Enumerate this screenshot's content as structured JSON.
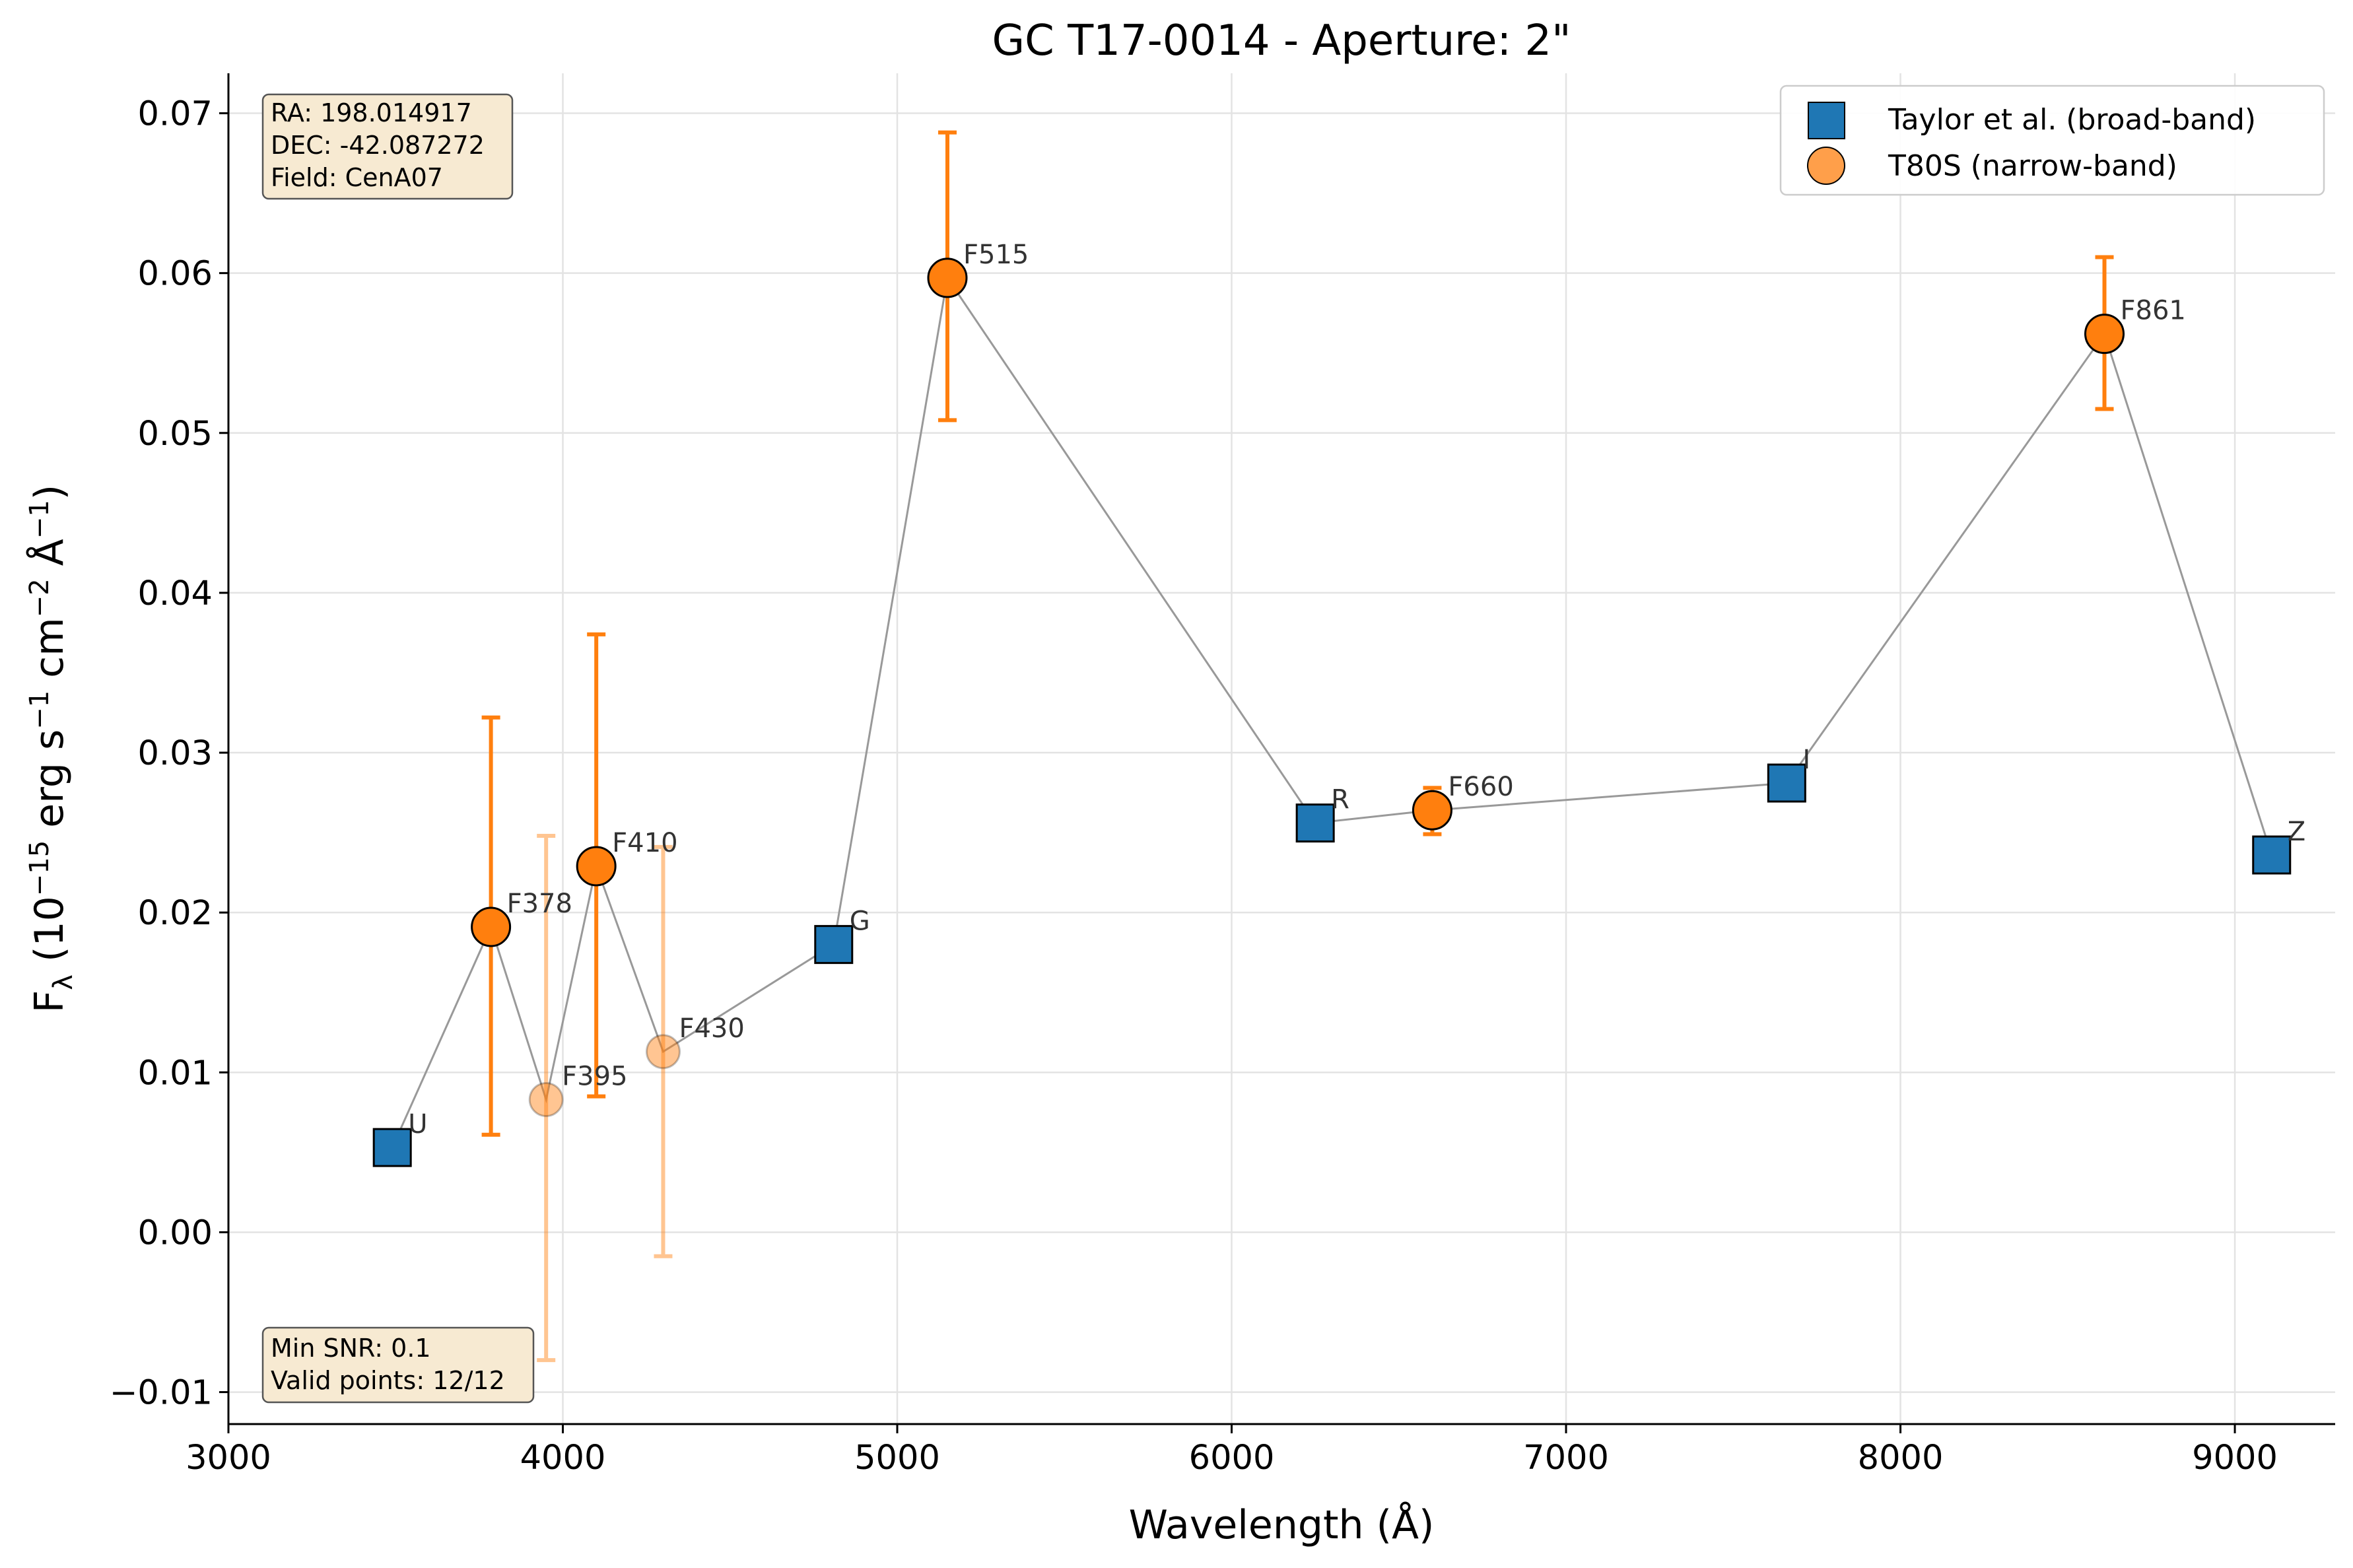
{
  "chart_data": {
    "type": "scatter",
    "title": "GC T17-0014 - Aperture: 2\"",
    "xlabel": "Wavelength (Å)",
    "ylabel": "F_λ (10^−15 erg s^−1 cm^−2 Å^−1)",
    "ylabel_parts": {
      "f": "F",
      "sub": "λ",
      "a": " (10",
      "e1": "−15",
      "b": " erg s",
      "e2": "−1",
      "c": " cm",
      "e3": "−2",
      "d": " Å",
      "e4": "−1",
      "end": ")"
    },
    "xlim": [
      3000,
      9300
    ],
    "ylim": [
      -0.012,
      0.0725
    ],
    "xticks": [
      3000,
      4000,
      5000,
      6000,
      7000,
      8000,
      9000
    ],
    "yticks": [
      -0.01,
      0.0,
      0.01,
      0.02,
      0.03,
      0.04,
      0.05,
      0.06,
      0.07
    ],
    "xtick_labels": [
      "3000",
      "4000",
      "5000",
      "6000",
      "7000",
      "8000",
      "9000"
    ],
    "ytick_labels": [
      "−0.01",
      "0.00",
      "0.01",
      "0.02",
      "0.03",
      "0.04",
      "0.05",
      "0.06",
      "0.07"
    ],
    "grid": true,
    "legend_position": "top-right",
    "series": [
      {
        "name": "Taylor et al. (broad-band)",
        "marker": "square",
        "color": "#1f77b4",
        "points": [
          {
            "label": "U",
            "x": 3490,
            "y": 0.0053
          },
          {
            "label": "G",
            "x": 4810,
            "y": 0.018
          },
          {
            "label": "R",
            "x": 6250,
            "y": 0.0256
          },
          {
            "label": "I",
            "x": 7660,
            "y": 0.0281
          },
          {
            "label": "Z",
            "x": 9110,
            "y": 0.0236
          }
        ]
      },
      {
        "name": "T80S (narrow-band)",
        "marker": "circle",
        "color": "#ff7f0e",
        "points": [
          {
            "label": "F378",
            "x": 3785,
            "y": 0.0191,
            "err_low": 0.0061,
            "err_high": 0.0322,
            "faded": false
          },
          {
            "label": "F395",
            "x": 3950,
            "y": 0.0083,
            "err_low": -0.008,
            "err_high": 0.0248,
            "faded": true
          },
          {
            "label": "F410",
            "x": 4100,
            "y": 0.0229,
            "err_low": 0.0085,
            "err_high": 0.0374,
            "faded": false
          },
          {
            "label": "F430",
            "x": 4300,
            "y": 0.0113,
            "err_low": -0.0015,
            "err_high": 0.0241,
            "faded": true
          },
          {
            "label": "F515",
            "x": 5150,
            "y": 0.0597,
            "err_low": 0.0508,
            "err_high": 0.0688,
            "faded": false
          },
          {
            "label": "F660",
            "x": 6600,
            "y": 0.0264,
            "err_low": 0.0249,
            "err_high": 0.0278,
            "faded": false
          },
          {
            "label": "F861",
            "x": 8610,
            "y": 0.0562,
            "err_low": 0.0515,
            "err_high": 0.061,
            "faded": false
          }
        ]
      }
    ],
    "connecting_line_order": [
      "U",
      "F378",
      "F395",
      "F410",
      "F430",
      "G",
      "F515",
      "R",
      "F660",
      "I",
      "F861",
      "Z"
    ],
    "info_box_top": [
      "RA: 198.014917",
      "DEC: -42.087272",
      "Field: CenA07"
    ],
    "info_box_bottom": [
      "Min SNR: 0.1",
      "Valid points: 12/12"
    ]
  }
}
